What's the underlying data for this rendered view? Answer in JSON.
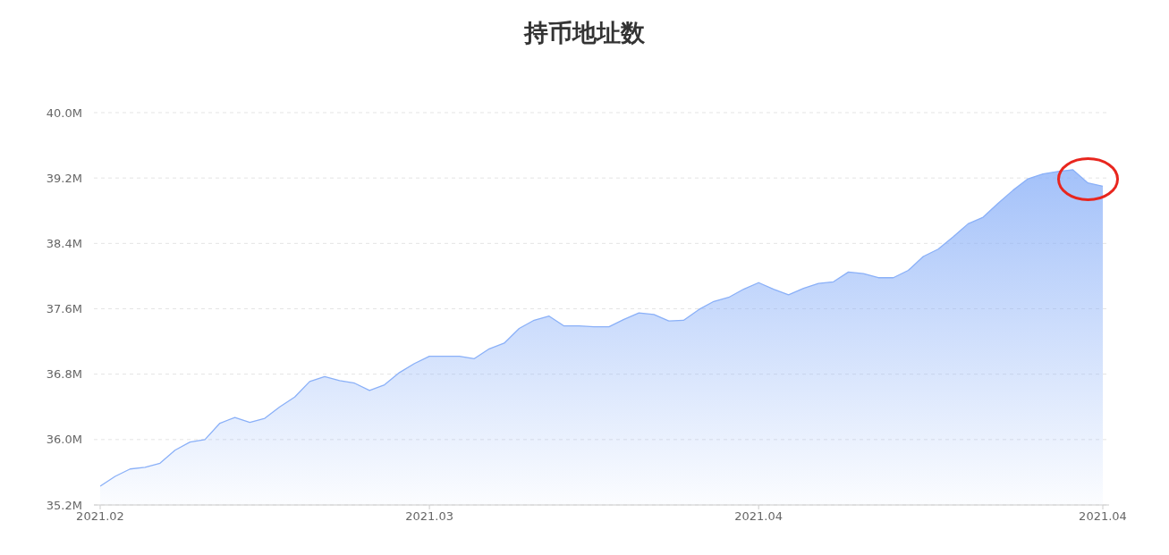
{
  "chart_data": {
    "type": "area",
    "title": "持币地址数",
    "categories": [
      "2021.02",
      null,
      null,
      null,
      null,
      null,
      null,
      null,
      null,
      null,
      null,
      null,
      null,
      null,
      null,
      null,
      null,
      null,
      null,
      null,
      null,
      null,
      "2021.03",
      null,
      null,
      null,
      null,
      null,
      null,
      null,
      null,
      null,
      null,
      null,
      null,
      null,
      null,
      null,
      null,
      null,
      null,
      null,
      null,
      null,
      "2021.04",
      null,
      null,
      null,
      null,
      null,
      null,
      null,
      null,
      null,
      null,
      null,
      null,
      null,
      null,
      null,
      null,
      null,
      null,
      null,
      null,
      null,
      null,
      "2021.04"
    ],
    "values": [
      35.43,
      35.55,
      35.64,
      35.66,
      35.71,
      35.87,
      35.97,
      36.0,
      36.2,
      36.27,
      36.21,
      36.26,
      36.4,
      36.52,
      36.71,
      36.77,
      36.72,
      36.69,
      36.6,
      36.67,
      36.82,
      36.93,
      37.02,
      37.02,
      37.02,
      36.99,
      37.11,
      37.18,
      37.36,
      37.46,
      37.51,
      37.39,
      37.39,
      37.38,
      37.38,
      37.47,
      37.55,
      37.53,
      37.45,
      37.46,
      37.59,
      37.69,
      37.74,
      37.84,
      37.92,
      37.84,
      37.77,
      37.85,
      37.91,
      37.93,
      38.05,
      38.03,
      37.98,
      37.98,
      38.07,
      38.24,
      38.33,
      38.48,
      38.64,
      38.72,
      38.89,
      39.05,
      39.19,
      39.25,
      39.28,
      39.3,
      39.14,
      39.1
    ],
    "color": "#8ab0f8",
    "ylim": [
      35.2,
      40.0
    ],
    "yticks": [
      {
        "value": 35.2,
        "label": "35.2M"
      },
      {
        "value": 36.0,
        "label": "36.0M"
      },
      {
        "value": 36.8,
        "label": "36.8M"
      },
      {
        "value": 37.6,
        "label": "37.6M"
      },
      {
        "value": 38.4,
        "label": "38.4M"
      },
      {
        "value": 39.2,
        "label": "39.2M"
      },
      {
        "value": 40.0,
        "label": "40.0M"
      }
    ],
    "grid": "y"
  }
}
